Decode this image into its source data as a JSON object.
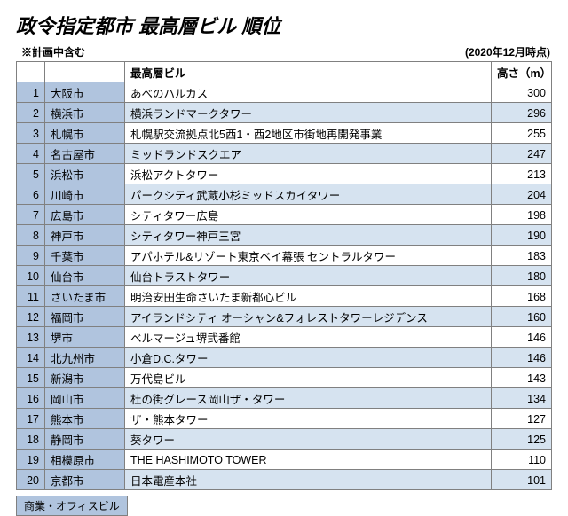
{
  "title": "政令指定都市 最高層ビル 順位",
  "note": "※計画中含む",
  "asof": "(2020年12月時点)",
  "headers": {
    "rank": "",
    "city": "",
    "building": "最高層ビル",
    "height": "高さ（m）"
  },
  "colors": {
    "header_bg": "#b0c4de",
    "row_even_bg": "#d6e3f0",
    "row_odd_bg": "#ffffff",
    "border": "#808080",
    "legend_bg": "#b0c4de"
  },
  "rows": [
    {
      "rank": "1",
      "city": "大阪市",
      "building": "あべのハルカス",
      "height": "300"
    },
    {
      "rank": "2",
      "city": "横浜市",
      "building": "横浜ランドマークタワー",
      "height": "296"
    },
    {
      "rank": "3",
      "city": "札幌市",
      "building": "札幌駅交流拠点北5西1・西2地区市街地再開発事業",
      "height": "255"
    },
    {
      "rank": "4",
      "city": "名古屋市",
      "building": "ミッドランドスクエア",
      "height": "247"
    },
    {
      "rank": "5",
      "city": "浜松市",
      "building": "浜松アクトタワー",
      "height": "213"
    },
    {
      "rank": "6",
      "city": "川崎市",
      "building": "パークシティ武蔵小杉ミッドスカイタワー",
      "height": "204"
    },
    {
      "rank": "7",
      "city": "広島市",
      "building": "シティタワー広島",
      "height": "198"
    },
    {
      "rank": "8",
      "city": "神戸市",
      "building": "シティタワー神戸三宮",
      "height": "190"
    },
    {
      "rank": "9",
      "city": "千葉市",
      "building": "アパホテル&リゾート東京ベイ幕張 セントラルタワー",
      "height": "183"
    },
    {
      "rank": "10",
      "city": "仙台市",
      "building": "仙台トラストタワー",
      "height": "180"
    },
    {
      "rank": "11",
      "city": "さいたま市",
      "building": "明治安田生命さいたま新都心ビル",
      "height": "168"
    },
    {
      "rank": "12",
      "city": "福岡市",
      "building": "アイランドシティ オーシャン&フォレストタワーレジデンス",
      "height": "160"
    },
    {
      "rank": "13",
      "city": "堺市",
      "building": "ベルマージュ堺弐番館",
      "height": "146"
    },
    {
      "rank": "14",
      "city": "北九州市",
      "building": "小倉D.C.タワー",
      "height": "146"
    },
    {
      "rank": "15",
      "city": "新潟市",
      "building": "万代島ビル",
      "height": "143"
    },
    {
      "rank": "16",
      "city": "岡山市",
      "building": "杜の街グレース岡山ザ・タワー",
      "height": "134"
    },
    {
      "rank": "17",
      "city": "熊本市",
      "building": "ザ・熊本タワー",
      "height": "127"
    },
    {
      "rank": "18",
      "city": "静岡市",
      "building": "葵タワー",
      "height": "125"
    },
    {
      "rank": "19",
      "city": "相模原市",
      "building": "THE HASHIMOTO TOWER",
      "height": "110"
    },
    {
      "rank": "20",
      "city": "京都市",
      "building": "日本電産本社",
      "height": "101"
    }
  ],
  "legend": "商業・オフィスビル"
}
